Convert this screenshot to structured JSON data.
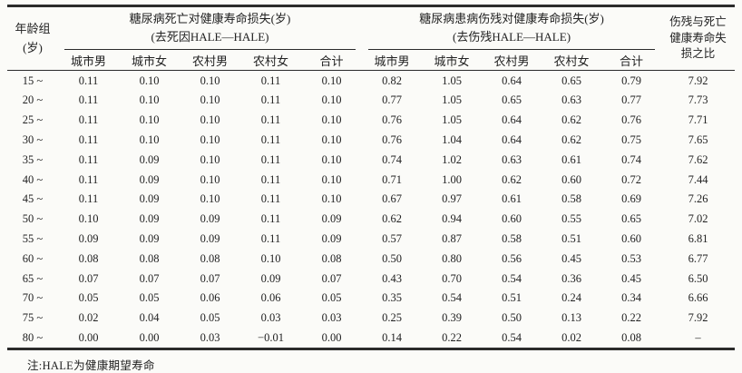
{
  "page": {
    "background_color": "#fbfbf8",
    "text_color": "#222222",
    "rule_color": "#2b2b2b"
  },
  "table": {
    "age_header": "年龄组\n(岁)",
    "group1_title": "糖尿病死亡对健康寿命损失(岁)\n(去死因HALE—HALE)",
    "group2_title": "糖尿病患病伤残对健康寿命损失(岁)\n(去伤残HALE—HALE)",
    "ratio_header": "伤残与死亡\n健康寿命失\n损之比",
    "subheaders": [
      "城市男",
      "城市女",
      "农村男",
      "农村女",
      "合计"
    ],
    "rows": [
      {
        "age": "15 ~",
        "death": [
          "0.11",
          "0.10",
          "0.10",
          "0.11",
          "0.10"
        ],
        "disability": [
          "0.82",
          "1.05",
          "0.64",
          "0.65",
          "0.79"
        ],
        "ratio": "7.92"
      },
      {
        "age": "20 ~",
        "death": [
          "0.11",
          "0.10",
          "0.10",
          "0.11",
          "0.10"
        ],
        "disability": [
          "0.77",
          "1.05",
          "0.65",
          "0.63",
          "0.77"
        ],
        "ratio": "7.73"
      },
      {
        "age": "25 ~",
        "death": [
          "0.11",
          "0.10",
          "0.10",
          "0.11",
          "0.10"
        ],
        "disability": [
          "0.76",
          "1.05",
          "0.64",
          "0.62",
          "0.76"
        ],
        "ratio": "7.71"
      },
      {
        "age": "30 ~",
        "death": [
          "0.11",
          "0.10",
          "0.10",
          "0.11",
          "0.10"
        ],
        "disability": [
          "0.76",
          "1.04",
          "0.64",
          "0.62",
          "0.75"
        ],
        "ratio": "7.65"
      },
      {
        "age": "35 ~",
        "death": [
          "0.11",
          "0.09",
          "0.10",
          "0.11",
          "0.10"
        ],
        "disability": [
          "0.74",
          "1.02",
          "0.63",
          "0.61",
          "0.74"
        ],
        "ratio": "7.62"
      },
      {
        "age": "40 ~",
        "death": [
          "0.11",
          "0.09",
          "0.10",
          "0.11",
          "0.10"
        ],
        "disability": [
          "0.71",
          "1.00",
          "0.62",
          "0.60",
          "0.72"
        ],
        "ratio": "7.44"
      },
      {
        "age": "45 ~",
        "death": [
          "0.11",
          "0.09",
          "0.10",
          "0.11",
          "0.10"
        ],
        "disability": [
          "0.67",
          "0.97",
          "0.61",
          "0.58",
          "0.69"
        ],
        "ratio": "7.26"
      },
      {
        "age": "50 ~",
        "death": [
          "0.10",
          "0.09",
          "0.09",
          "0.11",
          "0.09"
        ],
        "disability": [
          "0.62",
          "0.94",
          "0.60",
          "0.55",
          "0.65"
        ],
        "ratio": "7.02"
      },
      {
        "age": "55 ~",
        "death": [
          "0.09",
          "0.09",
          "0.09",
          "0.11",
          "0.09"
        ],
        "disability": [
          "0.57",
          "0.87",
          "0.58",
          "0.51",
          "0.60"
        ],
        "ratio": "6.81"
      },
      {
        "age": "60 ~",
        "death": [
          "0.08",
          "0.08",
          "0.08",
          "0.10",
          "0.08"
        ],
        "disability": [
          "0.50",
          "0.80",
          "0.56",
          "0.45",
          "0.53"
        ],
        "ratio": "6.77"
      },
      {
        "age": "65 ~",
        "death": [
          "0.07",
          "0.07",
          "0.07",
          "0.09",
          "0.07"
        ],
        "disability": [
          "0.43",
          "0.70",
          "0.54",
          "0.36",
          "0.45"
        ],
        "ratio": "6.50"
      },
      {
        "age": "70 ~",
        "death": [
          "0.05",
          "0.05",
          "0.06",
          "0.06",
          "0.05"
        ],
        "disability": [
          "0.35",
          "0.54",
          "0.51",
          "0.24",
          "0.34"
        ],
        "ratio": "6.66"
      },
      {
        "age": "75 ~",
        "death": [
          "0.02",
          "0.04",
          "0.05",
          "0.03",
          "0.03"
        ],
        "disability": [
          "0.25",
          "0.39",
          "0.50",
          "0.13",
          "0.22"
        ],
        "ratio": "7.92"
      },
      {
        "age": "80 ~",
        "death": [
          "0.00",
          "0.00",
          "0.03",
          "−0.01",
          "0.00"
        ],
        "disability": [
          "0.14",
          "0.22",
          "0.54",
          "0.02",
          "0.08"
        ],
        "ratio": "–"
      }
    ],
    "note": "注:HALE为健康期望寿命"
  }
}
